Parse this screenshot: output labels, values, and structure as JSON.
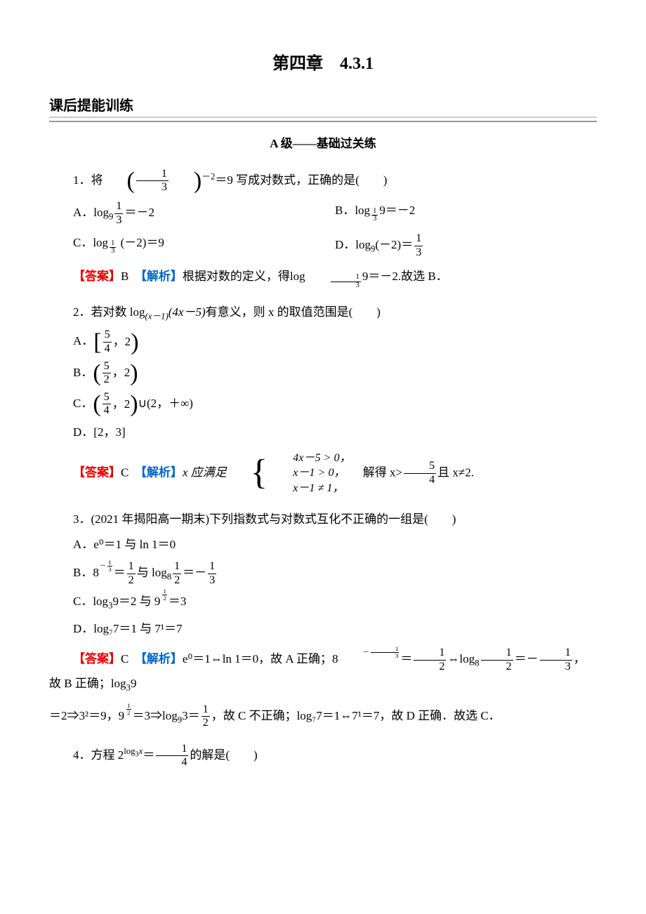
{
  "page": {
    "chapter_title": "第四章　4.3.1",
    "section_heading": "课后提能训练",
    "sub_heading": "A 级——基础过关练"
  },
  "q1": {
    "number": "1．",
    "stem_prefix": "将",
    "stem_suffix": "＝9 写成对数式，正确的是(　　)",
    "base_num": "1",
    "base_den": "3",
    "exponent": "－2",
    "optA_prefix": "A．log",
    "optA_sub": "9",
    "optA_num": "1",
    "optA_den": "3",
    "optA_eq": "＝－2",
    "optB_prefix": "B．log",
    "optB_sub_num": "1",
    "optB_sub_den": "3",
    "optB_arg": "9＝－2",
    "optC_prefix": "C．log",
    "optC_sub_num": "1",
    "optC_sub_den": "3",
    "optC_arg": " (－2)＝9",
    "optD_prefix": "D．log",
    "optD_sub": "9",
    "optD_arg": "(－2)＝",
    "optD_num": "1",
    "optD_den": "3",
    "answer_letter": "B",
    "analysis_prefix": "根据对数的定义，得",
    "analysis_log_prefix": "log",
    "analysis_sub_num": "1",
    "analysis_sub_den": "3",
    "analysis_arg": "9＝－2.",
    "analysis_suffix": "故选 B．"
  },
  "q2": {
    "number": "2．",
    "stem": "若对数 log",
    "stem_sub": "(x－1)",
    "stem_arg": "(4x－5)",
    "stem_suffix": "有意义，则 x 的取值范围是(　　)",
    "optA_prefix": "A．",
    "optA_num": "5",
    "optA_den": "4",
    "optA_right": "，2",
    "optB_prefix": "B．",
    "optB_num": "5",
    "optB_den": "2",
    "optB_right": "，2",
    "optC_prefix": "C．",
    "optC_num": "5",
    "optC_den": "4",
    "optC_right": "，2",
    "optC_union": "∪(2，＋∞)",
    "optD": "D．[2，3]",
    "answer_letter": "C",
    "analysis_prefix": "x 应满足",
    "case1": "4x－5 > 0，",
    "case2": "x－1 > 0，",
    "case3": "x－1 ≠ 1，",
    "analysis_mid": "　解得 x>",
    "analysis_frac_num": "5",
    "analysis_frac_den": "4",
    "analysis_suffix": "且 x≠2."
  },
  "q3": {
    "number": "3．",
    "stem": "(2021 年揭阳高一期末)下列指数式与对数式互化不正确的一组是(　　)",
    "optA": "A．e⁰＝1 与 ln 1＝0",
    "optB_prefix": "B．8",
    "optB_exp_neg": "－",
    "optB_exp_num": "1",
    "optB_exp_den": "3",
    "optB_mid1": "＝",
    "optB_frac1_num": "1",
    "optB_frac1_den": "2",
    "optB_mid2": "与 log",
    "optB_sub": "8",
    "optB_frac2_num": "1",
    "optB_frac2_den": "2",
    "optB_mid3": "＝－",
    "optB_frac3_num": "1",
    "optB_frac3_den": "3",
    "optC_prefix": "C．log",
    "optC_sub": "3",
    "optC_mid1": "9＝2 与 9",
    "optC_exp_num": "1",
    "optC_exp_den": "2",
    "optC_suffix": "＝3",
    "optD": "D．log₇7＝1 与 7¹＝7",
    "answer_letter": "C",
    "analysis_p1": "e⁰＝1⇔ln 1＝0，故 A 正确；8",
    "analysis_exp1_neg": "－",
    "analysis_exp1_num": "1",
    "analysis_exp1_den": "3",
    "analysis_p2": "＝",
    "analysis_f1_num": "1",
    "analysis_f1_den": "2",
    "analysis_p3": "⇔log",
    "analysis_sub1": "8",
    "analysis_f2_num": "1",
    "analysis_f2_den": "2",
    "analysis_p4": "＝－",
    "analysis_f3_num": "1",
    "analysis_f3_den": "3",
    "analysis_p5": "，故 B 正确；log",
    "analysis_sub2": "3",
    "analysis_p6": "9",
    "analysis_line2_p1": "＝2⇒3²＝9，9",
    "analysis_exp2_num": "1",
    "analysis_exp2_den": "2",
    "analysis_line2_p2": "＝3⇒log",
    "analysis_sub3": "9",
    "analysis_line2_p3": "3＝",
    "analysis_f4_num": "1",
    "analysis_f4_den": "2",
    "analysis_line2_p4": "，故 C 不正确；log₇7＝1⇔7¹＝7，故 D 正确．故选 C．"
  },
  "q4": {
    "number": "4．",
    "stem_prefix": "方程 2",
    "stem_sup_prefix": "log",
    "stem_sup_sub": "3",
    "stem_sup_arg": "x",
    "stem_mid": "＝",
    "stem_frac_num": "1",
    "stem_frac_den": "4",
    "stem_suffix": "的解是(　　)"
  },
  "labels": {
    "answer": "【答案】",
    "analysis": "【解析】"
  },
  "colors": {
    "answer_color": "#e60000",
    "analysis_color": "#0066cc",
    "text": "#000000",
    "background": "#ffffff"
  },
  "typography": {
    "body_fontsize": 17,
    "title_fontsize": 24,
    "heading_fontsize": 20
  }
}
